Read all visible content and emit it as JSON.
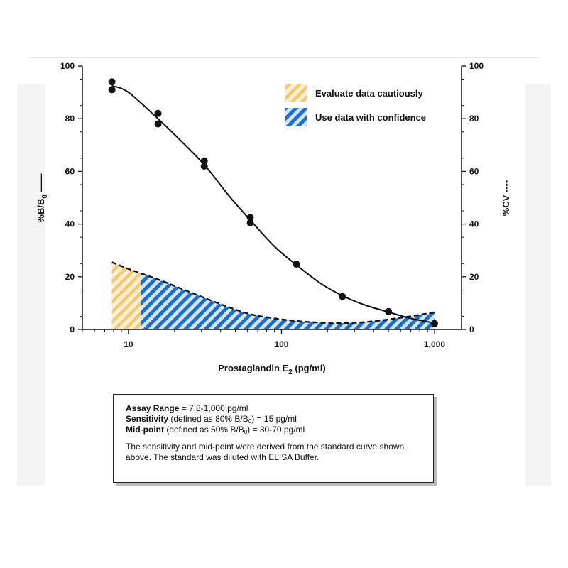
{
  "chart_data": {
    "type": "line",
    "x_scale": "log",
    "xlim": [
      5,
      1500
    ],
    "ylim": [
      0,
      100
    ],
    "xlabel": "Prostaglandin E",
    "xlabel_sub": "2",
    "xlabel_suffix": " (pg/ml)",
    "ylabel_left": "%B/B",
    "ylabel_left_sub": "0",
    "ylabel_left_mark": " ——",
    "ylabel_right": "%CV ----",
    "x_ticks": [
      10,
      100,
      1000
    ],
    "x_tick_labels": [
      "10",
      "100",
      "1,000"
    ],
    "y_ticks": [
      0,
      20,
      40,
      60,
      80,
      100
    ],
    "y_tick_labels": [
      "0",
      "20",
      "40",
      "60",
      "80",
      "100"
    ],
    "grid": false,
    "legend_position": "top-right",
    "legend": [
      {
        "label": "Evaluate data cautiously",
        "color": "#f4c670"
      },
      {
        "label": "Use data with confidence",
        "color": "#1d6fc4"
      }
    ],
    "points": [
      [
        7.8,
        94
      ],
      [
        7.8,
        91
      ],
      [
        15.6,
        82
      ],
      [
        15.6,
        78
      ],
      [
        31.3,
        64
      ],
      [
        31.3,
        62
      ],
      [
        62.5,
        42.5
      ],
      [
        62.5,
        40.5
      ],
      [
        125,
        24.8
      ],
      [
        250,
        12.5
      ],
      [
        500,
        6.8
      ],
      [
        1000,
        2.2
      ]
    ],
    "curve": [
      [
        7.8,
        92.5
      ],
      [
        10,
        90
      ],
      [
        15.6,
        80
      ],
      [
        20,
        74
      ],
      [
        31.3,
        62.5
      ],
      [
        45,
        51
      ],
      [
        62.5,
        41.5
      ],
      [
        90,
        31.5
      ],
      [
        125,
        24.5
      ],
      [
        180,
        17.5
      ],
      [
        250,
        12.8
      ],
      [
        350,
        9.3
      ],
      [
        500,
        6.6
      ],
      [
        700,
        4.2
      ],
      [
        1000,
        2.4
      ]
    ],
    "cv_curve": [
      [
        7.8,
        25.5
      ],
      [
        10,
        23
      ],
      [
        15.6,
        19
      ],
      [
        20,
        16.5
      ],
      [
        31.3,
        12
      ],
      [
        45,
        8.5
      ],
      [
        62.5,
        5.8
      ],
      [
        90,
        4.2
      ],
      [
        125,
        3.2
      ],
      [
        180,
        2.6
      ],
      [
        250,
        2.4
      ],
      [
        350,
        2.8
      ],
      [
        500,
        3.8
      ],
      [
        700,
        5
      ],
      [
        1000,
        6.5
      ]
    ],
    "caution_threshold": 12
  },
  "info": {
    "assay_range_label": "Assay Range",
    "assay_range_value": " = 7.8-1,000 pg/ml",
    "sensitivity_label": "Sensitivity",
    "sensitivity_value_pre": " (defined as 80% B/B",
    "sensitivity_value_sub": "0",
    "sensitivity_value_post": ") = 15 pg/ml",
    "midpoint_label": "Mid-point",
    "midpoint_value_pre": " (defined as 50% B/B",
    "midpoint_value_sub": "0",
    "midpoint_value_post": ") = 30-70 pg/ml",
    "note": "The sensitivity and mid-point were derived from the standard curve shown above. The standard was diluted with ELISA Buffer."
  }
}
